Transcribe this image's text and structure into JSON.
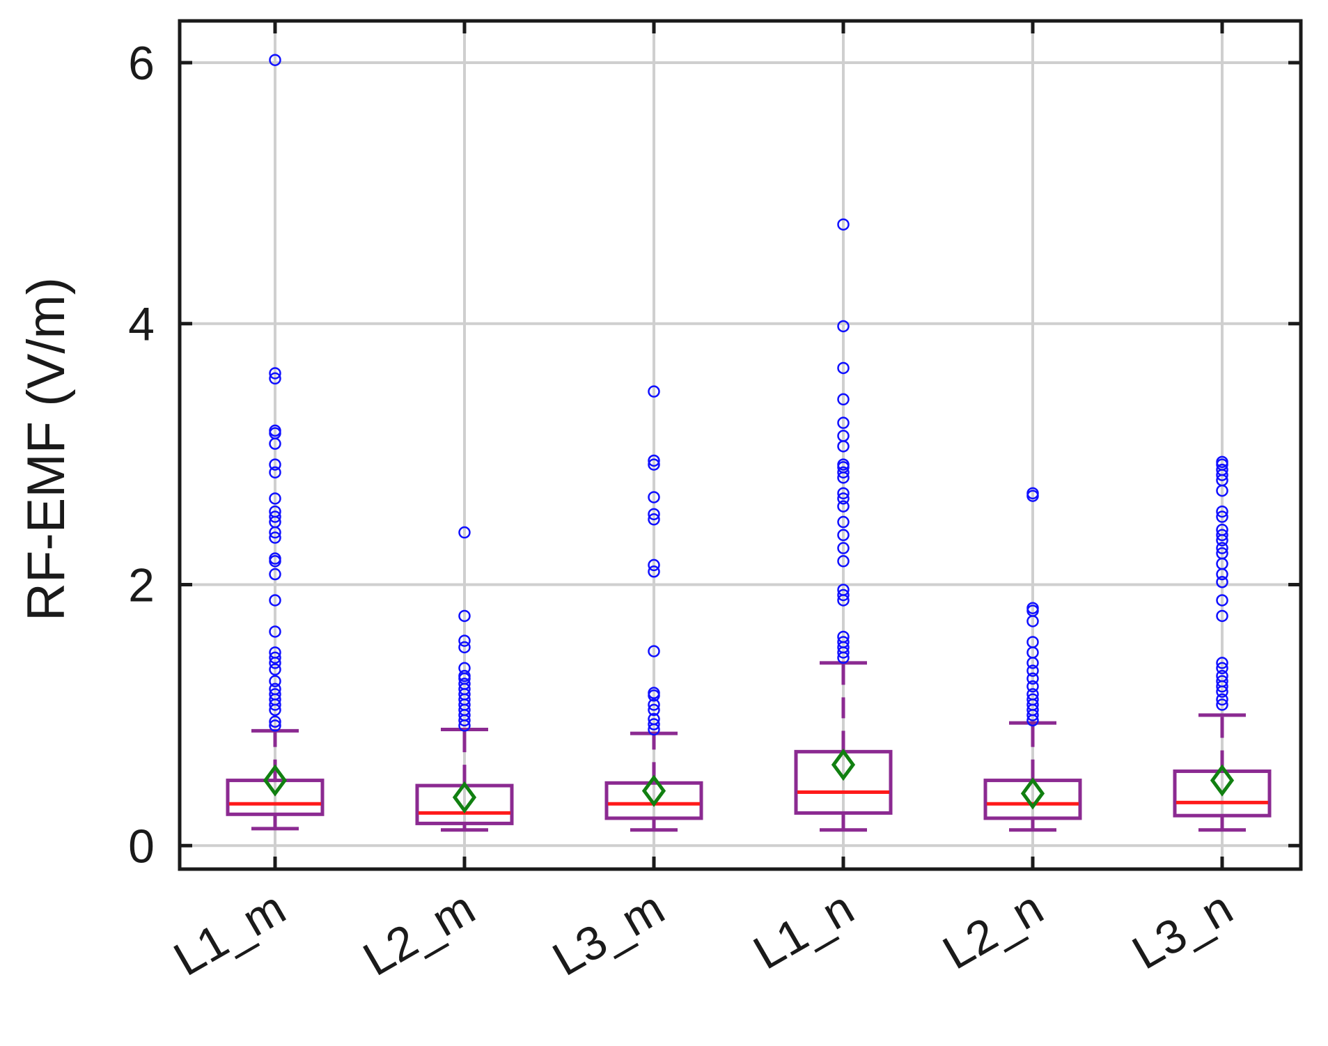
{
  "chart_data": {
    "type": "box",
    "title": "",
    "xlabel": "",
    "ylabel": "RF-EMF (V/m)",
    "ylim": [
      -0.18,
      6.32
    ],
    "yticks": [
      0,
      2,
      4,
      6
    ],
    "grid": true,
    "colors": {
      "box": "#8B2A91",
      "median": "#FF1A1A",
      "mean_marker": "#118011",
      "outlier": "#1010FF",
      "grid": "#cfcfcf",
      "axis": "#1a1a1a"
    },
    "categories": [
      "L1_m",
      "L2_m",
      "L3_m",
      "L1_n",
      "L2_n",
      "L3_n"
    ],
    "boxes": [
      {
        "category": "L1_m",
        "whisker_low": 0.13,
        "q1": 0.24,
        "median": 0.32,
        "q3": 0.5,
        "whisker_high": 0.88,
        "mean": 0.5,
        "outliers": [
          0.92,
          0.95,
          1.04,
          1.08,
          1.12,
          1.16,
          1.2,
          1.26,
          1.35,
          1.4,
          1.44,
          1.48,
          1.64,
          1.88,
          2.08,
          2.18,
          2.2,
          2.36,
          2.4,
          2.48,
          2.52,
          2.56,
          2.66,
          2.86,
          2.92,
          3.08,
          3.16,
          3.18,
          3.58,
          3.62,
          6.02
        ]
      },
      {
        "category": "L2_m",
        "whisker_low": 0.12,
        "q1": 0.17,
        "median": 0.25,
        "q3": 0.46,
        "whisker_high": 0.89,
        "mean": 0.37,
        "outliers": [
          0.92,
          0.96,
          1.0,
          1.04,
          1.08,
          1.12,
          1.16,
          1.2,
          1.24,
          1.28,
          1.3,
          1.36,
          1.52,
          1.57,
          1.76,
          2.4
        ]
      },
      {
        "category": "L3_m",
        "whisker_low": 0.12,
        "q1": 0.21,
        "median": 0.32,
        "q3": 0.48,
        "whisker_high": 0.86,
        "mean": 0.42,
        "outliers": [
          0.89,
          0.93,
          0.97,
          1.04,
          1.08,
          1.15,
          1.17,
          1.49,
          2.1,
          2.15,
          2.5,
          2.54,
          2.67,
          2.92,
          2.95,
          3.48
        ]
      },
      {
        "category": "L1_n",
        "whisker_low": 0.12,
        "q1": 0.25,
        "median": 0.41,
        "q3": 0.72,
        "whisker_high": 1.4,
        "mean": 0.62,
        "outliers": [
          1.44,
          1.48,
          1.52,
          1.56,
          1.6,
          1.88,
          1.92,
          1.96,
          2.18,
          2.28,
          2.38,
          2.48,
          2.6,
          2.66,
          2.7,
          2.82,
          2.86,
          2.9,
          2.92,
          3.06,
          3.14,
          3.24,
          3.42,
          3.66,
          3.98,
          4.76
        ]
      },
      {
        "category": "L2_n",
        "whisker_low": 0.12,
        "q1": 0.21,
        "median": 0.32,
        "q3": 0.5,
        "whisker_high": 0.94,
        "mean": 0.4,
        "outliers": [
          0.96,
          1.0,
          1.04,
          1.08,
          1.12,
          1.16,
          1.22,
          1.28,
          1.34,
          1.4,
          1.48,
          1.56,
          1.72,
          1.8,
          1.82,
          2.68,
          2.7
        ]
      },
      {
        "category": "L3_n",
        "whisker_low": 0.12,
        "q1": 0.23,
        "median": 0.33,
        "q3": 0.57,
        "whisker_high": 1.0,
        "mean": 0.5,
        "outliers": [
          1.08,
          1.12,
          1.18,
          1.22,
          1.26,
          1.3,
          1.36,
          1.4,
          1.76,
          1.88,
          2.02,
          2.08,
          2.16,
          2.24,
          2.28,
          2.34,
          2.38,
          2.42,
          2.52,
          2.56,
          2.72,
          2.8,
          2.84,
          2.88,
          2.92,
          2.94
        ]
      }
    ]
  }
}
